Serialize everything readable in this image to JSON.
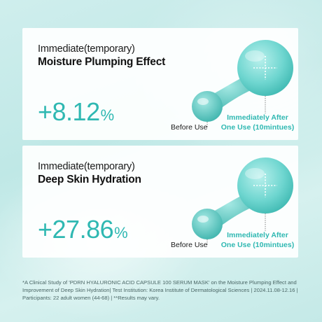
{
  "cards": [
    {
      "heading_light": "Immediate(temporary)",
      "heading_bold": "Moisture Plumping Effect",
      "value": "+8.12",
      "unit": "%",
      "before_label": "Before Use",
      "after_label_line1": "Immediately After",
      "after_label_line2": "One Use (10mintues)"
    },
    {
      "heading_light": "Immediate(temporary)",
      "heading_bold": "Deep Skin Hydration",
      "value": "+27.86",
      "unit": "%",
      "before_label": "Before Use",
      "after_label_line1": "Immediately After",
      "after_label_line2": "One Use (10mintues)"
    }
  ],
  "footnote": "*A Clinical Study of 'PDRN HYALURONIC ACID CAPSULE 100 SERUM MASK' on the Moisture Plumping Effect and Improvement of Deep Skin Hydration| Test Institution: Korea Institute of Dermatological Sciences | 2024.11.08-12.16 | Participants: 22 adult women (44-68) | **Results may vary.",
  "colors": {
    "accent": "#2fb8b2",
    "drop_fill": "#6fd6d0",
    "background": "#c4e9e7"
  },
  "icons": [
    "water-droplet-icon",
    "sparkle-cross-icon"
  ]
}
